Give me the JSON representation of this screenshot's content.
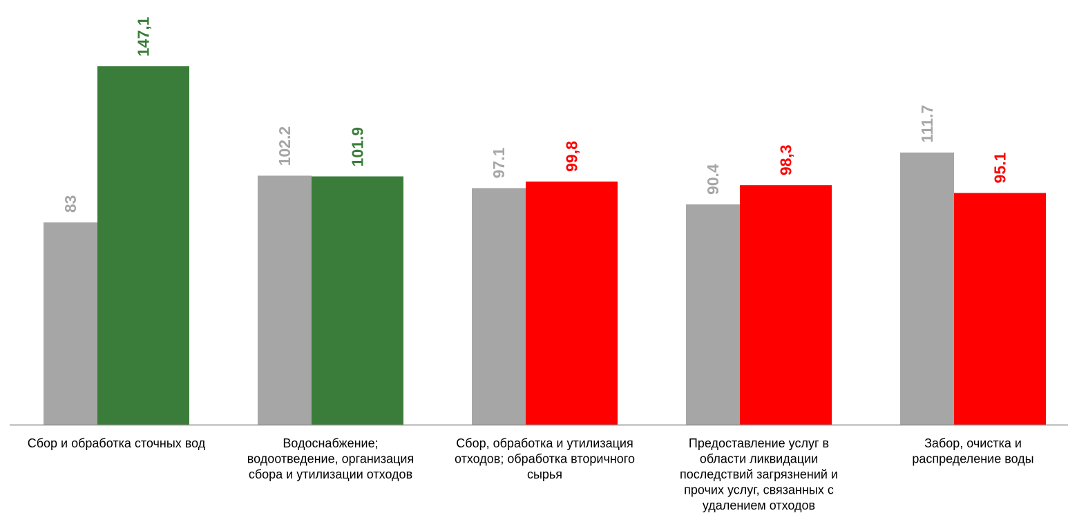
{
  "chart_data": {
    "type": "bar",
    "title": "",
    "xlabel": "",
    "ylabel": "",
    "ylim": [
      0,
      150
    ],
    "grid": false,
    "legend": "none",
    "categories": [
      [
        "Сбор и обработка сточных вод"
      ],
      [
        "Водоснабжение;",
        "водоотведение, организация",
        "сбора и утилизации отходов"
      ],
      [
        "Сбор, обработка и утилизация",
        "отходов; обработка вторичного",
        "сырья"
      ],
      [
        "Предоставление услуг в",
        "области ликвидации",
        "последствий загрязнений и",
        "прочих услуг, связанных с",
        "удалением отходов"
      ],
      [
        "Забор, очистка и",
        "распределение воды"
      ]
    ],
    "series": [
      {
        "values": [
          83,
          102.2,
          97.1,
          90.4,
          111.7
        ],
        "labels": [
          "83",
          "102.2",
          "97.1",
          "90.4",
          "111.7"
        ],
        "colors": [
          "#a6a6a6",
          "#a6a6a6",
          "#a6a6a6",
          "#a6a6a6",
          "#a6a6a6"
        ],
        "label_colors": [
          "#a6a6a6",
          "#a6a6a6",
          "#a6a6a6",
          "#a6a6a6",
          "#a6a6a6"
        ]
      },
      {
        "values": [
          147.1,
          101.9,
          99.8,
          98.3,
          95.1
        ],
        "labels": [
          "147,1",
          "101.9",
          "99,8",
          "98,3",
          "95.1"
        ],
        "colors": [
          "#3a7d3a",
          "#3a7d3a",
          "#ff0000",
          "#ff0000",
          "#ff0000"
        ],
        "label_colors": [
          "#3a7d3a",
          "#3a7d3a",
          "#ff0000",
          "#ff0000",
          "#ff0000"
        ]
      }
    ]
  }
}
